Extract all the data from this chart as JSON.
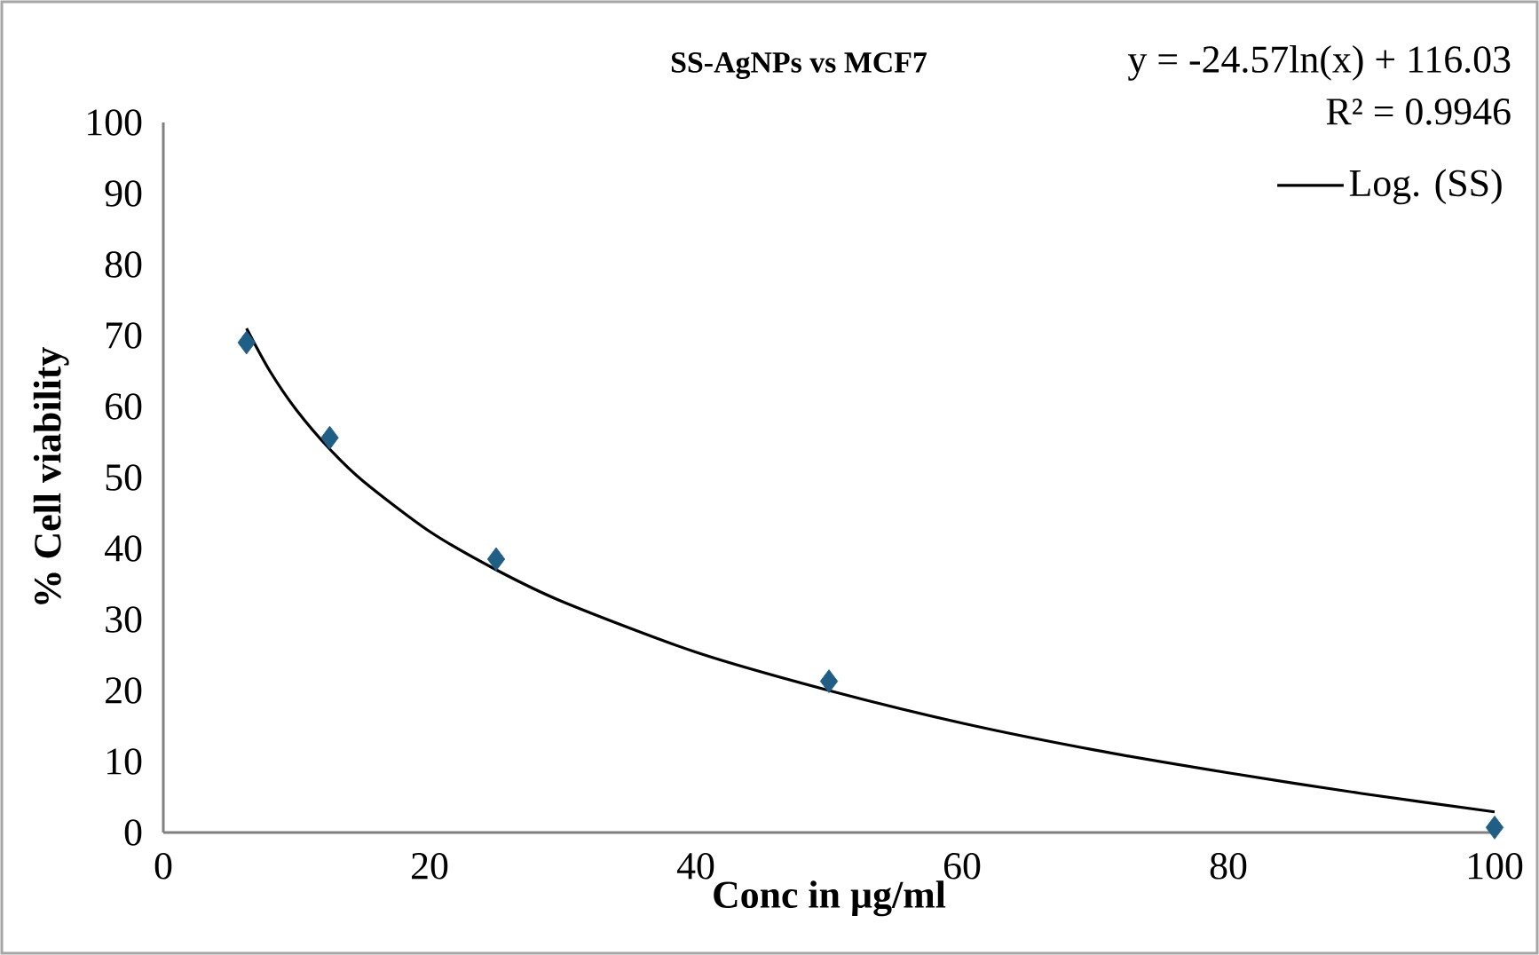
{
  "chart_data": {
    "type": "scatter",
    "title": "SS-AgNPs vs MCF7",
    "xlabel": "Conc in µg/ml",
    "ylabel": "%  Cell viability",
    "xlim": [
      0,
      100
    ],
    "ylim": [
      0,
      100
    ],
    "xticks": [
      0,
      20,
      40,
      60,
      80,
      100
    ],
    "yticks": [
      0,
      10,
      20,
      30,
      40,
      50,
      60,
      70,
      80,
      90,
      100
    ],
    "legend": "top right",
    "annotations": [
      "y = -24.57ln(x) + 116.03",
      "R² = 0.9946"
    ],
    "series": [
      {
        "marker": "diamond",
        "color": "#1f5f86",
        "x": [
          6.25,
          12.5,
          25,
          50,
          100
        ],
        "values": [
          69,
          55.6,
          38.5,
          21.3,
          0.7
        ]
      },
      {
        "type": "line",
        "name": "Log. (SS)",
        "color": "#000000",
        "marker": "none",
        "x": [
          6.25,
          8,
          10,
          12.5,
          15,
          20,
          25,
          30,
          40,
          50,
          60,
          70,
          80,
          90,
          100
        ],
        "values": [
          71,
          65,
          59.5,
          54,
          49.5,
          42.4,
          37,
          32.5,
          25.4,
          20,
          15.4,
          11.6,
          8.4,
          5.5,
          2.9
        ]
      }
    ]
  }
}
